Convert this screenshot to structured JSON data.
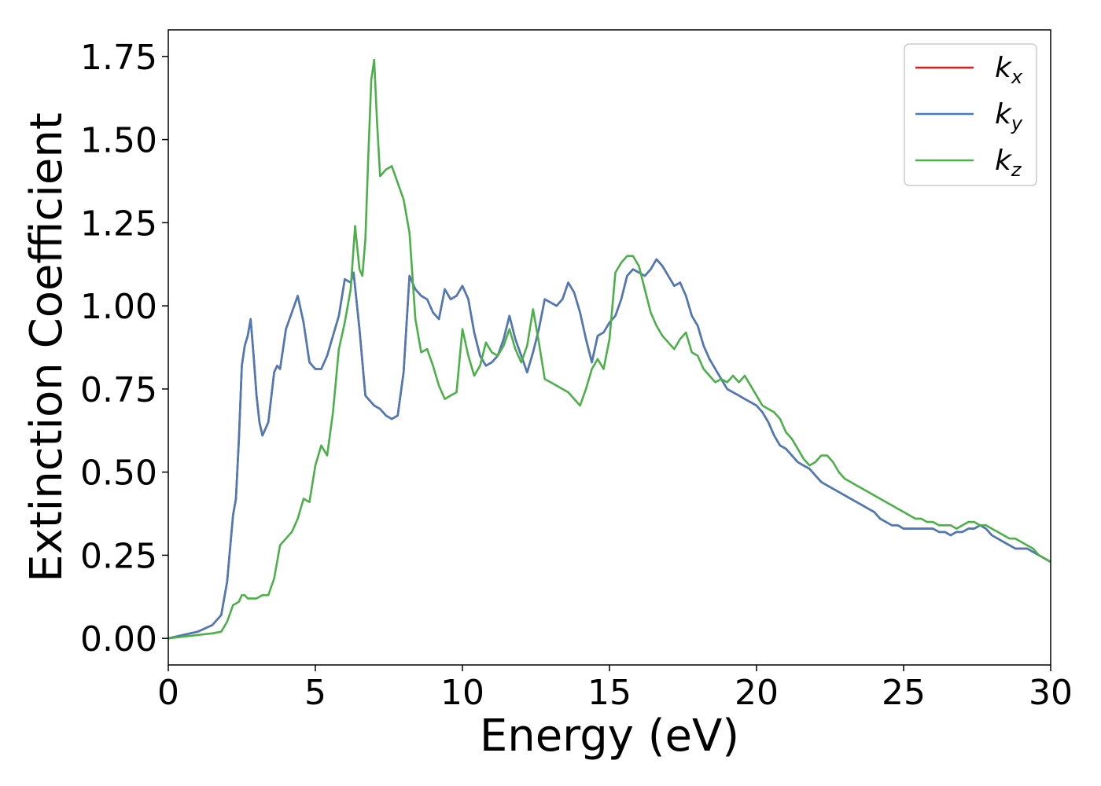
{
  "chart_data": {
    "type": "line",
    "title": "",
    "xlabel": "Energy (eV)",
    "ylabel": "Extinction Coefficient",
    "xlim": [
      0,
      30
    ],
    "ylim": [
      -0.08,
      1.83
    ],
    "xticks": [
      0,
      5,
      10,
      15,
      20,
      25,
      30
    ],
    "xtick_labels": [
      "0",
      "5",
      "10",
      "15",
      "20",
      "25",
      "30"
    ],
    "yticks": [
      0,
      0.25,
      0.5,
      0.75,
      1.0,
      1.25,
      1.5,
      1.75
    ],
    "ytick_labels": [
      "0.00",
      "0.25",
      "0.50",
      "0.75",
      "1.00",
      "1.25",
      "1.50",
      "1.75"
    ],
    "grid": false,
    "legend_position": "top-right",
    "series": [
      {
        "name": "k",
        "subscript": "x",
        "color": "#e41a1c",
        "x": [
          0,
          0.5,
          1.0,
          1.5,
          1.8,
          2.0,
          2.2,
          2.3,
          2.4,
          2.5,
          2.6,
          2.7,
          2.8,
          2.9,
          3.0,
          3.1,
          3.2,
          3.4,
          3.6,
          3.7,
          3.8,
          3.9,
          4.0,
          4.2,
          4.4,
          4.6,
          4.8,
          5.0,
          5.2,
          5.4,
          5.6,
          5.8,
          6.0,
          6.2,
          6.3,
          6.5,
          6.7,
          7.0,
          7.2,
          7.4,
          7.6,
          7.8,
          8.0,
          8.2,
          8.4,
          8.6,
          8.8,
          9.0,
          9.2,
          9.4,
          9.6,
          9.8,
          10.0,
          10.2,
          10.4,
          10.6,
          10.8,
          11.0,
          11.2,
          11.4,
          11.6,
          11.8,
          12.0,
          12.2,
          12.4,
          12.6,
          12.8,
          13.0,
          13.2,
          13.4,
          13.6,
          13.8,
          14.0,
          14.2,
          14.4,
          14.6,
          14.8,
          15.0,
          15.2,
          15.4,
          15.6,
          15.8,
          16.0,
          16.2,
          16.4,
          16.6,
          16.8,
          17.0,
          17.2,
          17.4,
          17.6,
          17.8,
          18.0,
          18.2,
          18.4,
          18.6,
          18.8,
          19.0,
          19.2,
          19.4,
          19.6,
          19.8,
          20.0,
          20.2,
          20.4,
          20.6,
          20.8,
          21.0,
          21.2,
          21.4,
          21.6,
          21.8,
          22.0,
          22.2,
          22.4,
          22.6,
          22.8,
          23.0,
          23.2,
          23.4,
          23.6,
          23.8,
          24.0,
          24.2,
          24.4,
          24.6,
          24.8,
          25.0,
          25.2,
          25.4,
          25.6,
          25.8,
          26.0,
          26.2,
          26.4,
          26.6,
          26.8,
          27.0,
          27.2,
          27.4,
          27.6,
          27.8,
          28.0,
          28.2,
          28.4,
          28.6,
          28.8,
          29.0,
          29.2,
          29.4,
          29.6,
          29.8,
          30.0
        ],
        "y": [
          0,
          0.01,
          0.02,
          0.04,
          0.07,
          0.17,
          0.37,
          0.42,
          0.6,
          0.82,
          0.88,
          0.91,
          0.96,
          0.85,
          0.73,
          0.65,
          0.61,
          0.65,
          0.8,
          0.82,
          0.81,
          0.87,
          0.93,
          0.98,
          1.03,
          0.95,
          0.83,
          0.81,
          0.81,
          0.85,
          0.91,
          0.97,
          1.08,
          1.07,
          1.1,
          0.93,
          0.73,
          0.7,
          0.69,
          0.67,
          0.66,
          0.67,
          0.8,
          1.09,
          1.05,
          1.03,
          1.02,
          0.98,
          0.96,
          1.05,
          1.02,
          1.03,
          1.06,
          1.02,
          0.92,
          0.85,
          0.82,
          0.83,
          0.85,
          0.9,
          0.97,
          0.9,
          0.85,
          0.8,
          0.86,
          0.93,
          1.02,
          1.01,
          1.0,
          1.02,
          1.07,
          1.04,
          0.98,
          0.9,
          0.83,
          0.91,
          0.92,
          0.95,
          0.97,
          1.02,
          1.09,
          1.11,
          1.1,
          1.09,
          1.11,
          1.14,
          1.12,
          1.09,
          1.06,
          1.07,
          1.03,
          0.97,
          0.94,
          0.88,
          0.84,
          0.81,
          0.78,
          0.75,
          0.74,
          0.73,
          0.72,
          0.71,
          0.7,
          0.68,
          0.65,
          0.61,
          0.58,
          0.57,
          0.55,
          0.53,
          0.52,
          0.51,
          0.49,
          0.47,
          0.46,
          0.45,
          0.44,
          0.43,
          0.42,
          0.41,
          0.4,
          0.39,
          0.38,
          0.36,
          0.35,
          0.34,
          0.34,
          0.33,
          0.33,
          0.33,
          0.33,
          0.33,
          0.33,
          0.32,
          0.32,
          0.31,
          0.32,
          0.32,
          0.33,
          0.33,
          0.34,
          0.33,
          0.31,
          0.3,
          0.29,
          0.28,
          0.27,
          0.27,
          0.27,
          0.26,
          0.25,
          0.24,
          0.23
        ]
      },
      {
        "name": "k",
        "subscript": "y",
        "color": "#4a7bb7",
        "x": [
          0,
          0.5,
          1.0,
          1.5,
          1.8,
          2.0,
          2.2,
          2.3,
          2.4,
          2.5,
          2.6,
          2.7,
          2.8,
          2.9,
          3.0,
          3.1,
          3.2,
          3.4,
          3.6,
          3.7,
          3.8,
          3.9,
          4.0,
          4.2,
          4.4,
          4.6,
          4.8,
          5.0,
          5.2,
          5.4,
          5.6,
          5.8,
          6.0,
          6.2,
          6.3,
          6.5,
          6.7,
          7.0,
          7.2,
          7.4,
          7.6,
          7.8,
          8.0,
          8.2,
          8.4,
          8.6,
          8.8,
          9.0,
          9.2,
          9.4,
          9.6,
          9.8,
          10.0,
          10.2,
          10.4,
          10.6,
          10.8,
          11.0,
          11.2,
          11.4,
          11.6,
          11.8,
          12.0,
          12.2,
          12.4,
          12.6,
          12.8,
          13.0,
          13.2,
          13.4,
          13.6,
          13.8,
          14.0,
          14.2,
          14.4,
          14.6,
          14.8,
          15.0,
          15.2,
          15.4,
          15.6,
          15.8,
          16.0,
          16.2,
          16.4,
          16.6,
          16.8,
          17.0,
          17.2,
          17.4,
          17.6,
          17.8,
          18.0,
          18.2,
          18.4,
          18.6,
          18.8,
          19.0,
          19.2,
          19.4,
          19.6,
          19.8,
          20.0,
          20.2,
          20.4,
          20.6,
          20.8,
          21.0,
          21.2,
          21.4,
          21.6,
          21.8,
          22.0,
          22.2,
          22.4,
          22.6,
          22.8,
          23.0,
          23.2,
          23.4,
          23.6,
          23.8,
          24.0,
          24.2,
          24.4,
          24.6,
          24.8,
          25.0,
          25.2,
          25.4,
          25.6,
          25.8,
          26.0,
          26.2,
          26.4,
          26.6,
          26.8,
          27.0,
          27.2,
          27.4,
          27.6,
          27.8,
          28.0,
          28.2,
          28.4,
          28.6,
          28.8,
          29.0,
          29.2,
          29.4,
          29.6,
          29.8,
          30.0
        ],
        "y": [
          0,
          0.01,
          0.02,
          0.04,
          0.07,
          0.17,
          0.37,
          0.42,
          0.6,
          0.82,
          0.88,
          0.91,
          0.96,
          0.85,
          0.73,
          0.65,
          0.61,
          0.65,
          0.8,
          0.82,
          0.81,
          0.87,
          0.93,
          0.98,
          1.03,
          0.95,
          0.83,
          0.81,
          0.81,
          0.85,
          0.91,
          0.97,
          1.08,
          1.07,
          1.1,
          0.93,
          0.73,
          0.7,
          0.69,
          0.67,
          0.66,
          0.67,
          0.8,
          1.09,
          1.05,
          1.03,
          1.02,
          0.98,
          0.96,
          1.05,
          1.02,
          1.03,
          1.06,
          1.02,
          0.92,
          0.85,
          0.82,
          0.83,
          0.85,
          0.9,
          0.97,
          0.9,
          0.85,
          0.8,
          0.86,
          0.93,
          1.02,
          1.01,
          1.0,
          1.02,
          1.07,
          1.04,
          0.98,
          0.9,
          0.83,
          0.91,
          0.92,
          0.95,
          0.97,
          1.02,
          1.09,
          1.11,
          1.1,
          1.09,
          1.11,
          1.14,
          1.12,
          1.09,
          1.06,
          1.07,
          1.03,
          0.97,
          0.94,
          0.88,
          0.84,
          0.81,
          0.78,
          0.75,
          0.74,
          0.73,
          0.72,
          0.71,
          0.7,
          0.68,
          0.65,
          0.61,
          0.58,
          0.57,
          0.55,
          0.53,
          0.52,
          0.51,
          0.49,
          0.47,
          0.46,
          0.45,
          0.44,
          0.43,
          0.42,
          0.41,
          0.4,
          0.39,
          0.38,
          0.36,
          0.35,
          0.34,
          0.34,
          0.33,
          0.33,
          0.33,
          0.33,
          0.33,
          0.33,
          0.32,
          0.32,
          0.31,
          0.32,
          0.32,
          0.33,
          0.33,
          0.34,
          0.33,
          0.31,
          0.3,
          0.29,
          0.28,
          0.27,
          0.27,
          0.27,
          0.26,
          0.25,
          0.24,
          0.23
        ]
      },
      {
        "name": "k",
        "subscript": "z",
        "color": "#4daf4a",
        "x": [
          0,
          0.5,
          1.0,
          1.5,
          1.8,
          2.0,
          2.2,
          2.4,
          2.5,
          2.6,
          2.7,
          2.8,
          3.0,
          3.2,
          3.4,
          3.6,
          3.8,
          4.0,
          4.2,
          4.4,
          4.6,
          4.8,
          5.0,
          5.2,
          5.4,
          5.6,
          5.8,
          6.0,
          6.2,
          6.35,
          6.5,
          6.6,
          6.7,
          6.8,
          6.9,
          7.0,
          7.1,
          7.2,
          7.4,
          7.6,
          7.8,
          8.0,
          8.2,
          8.4,
          8.6,
          8.8,
          9.0,
          9.2,
          9.4,
          9.6,
          9.8,
          10.0,
          10.2,
          10.4,
          10.6,
          10.8,
          11.0,
          11.2,
          11.4,
          11.6,
          11.8,
          12.0,
          12.2,
          12.4,
          12.6,
          12.8,
          13.0,
          13.2,
          13.4,
          13.6,
          13.8,
          14.0,
          14.2,
          14.4,
          14.6,
          14.8,
          15.0,
          15.2,
          15.4,
          15.6,
          15.8,
          16.0,
          16.2,
          16.4,
          16.6,
          16.8,
          17.0,
          17.2,
          17.4,
          17.6,
          17.8,
          18.0,
          18.2,
          18.4,
          18.6,
          18.8,
          19.0,
          19.2,
          19.4,
          19.6,
          19.8,
          20.0,
          20.2,
          20.4,
          20.6,
          20.8,
          21.0,
          21.2,
          21.4,
          21.6,
          21.8,
          22.0,
          22.2,
          22.4,
          22.6,
          22.8,
          23.0,
          23.2,
          23.4,
          23.6,
          23.8,
          24.0,
          24.2,
          24.4,
          24.6,
          24.8,
          25.0,
          25.2,
          25.4,
          25.6,
          25.8,
          26.0,
          26.2,
          26.4,
          26.6,
          26.8,
          27.0,
          27.2,
          27.4,
          27.6,
          27.8,
          28.0,
          28.2,
          28.4,
          28.6,
          28.8,
          29.0,
          29.2,
          29.4,
          29.6,
          29.8,
          30.0
        ],
        "y": [
          0,
          0.005,
          0.01,
          0.015,
          0.02,
          0.05,
          0.1,
          0.11,
          0.13,
          0.13,
          0.12,
          0.12,
          0.12,
          0.13,
          0.13,
          0.18,
          0.28,
          0.3,
          0.32,
          0.36,
          0.42,
          0.41,
          0.52,
          0.58,
          0.55,
          0.68,
          0.87,
          0.95,
          1.05,
          1.24,
          1.11,
          1.09,
          1.2,
          1.45,
          1.68,
          1.74,
          1.55,
          1.39,
          1.41,
          1.42,
          1.37,
          1.32,
          1.22,
          0.96,
          0.86,
          0.87,
          0.82,
          0.76,
          0.72,
          0.73,
          0.74,
          0.93,
          0.85,
          0.79,
          0.82,
          0.89,
          0.86,
          0.85,
          0.88,
          0.93,
          0.87,
          0.83,
          0.88,
          0.99,
          0.89,
          0.78,
          0.77,
          0.76,
          0.75,
          0.74,
          0.72,
          0.7,
          0.75,
          0.81,
          0.84,
          0.81,
          0.9,
          1.1,
          1.13,
          1.15,
          1.15,
          1.12,
          1.05,
          0.98,
          0.94,
          0.91,
          0.89,
          0.87,
          0.9,
          0.92,
          0.86,
          0.85,
          0.81,
          0.79,
          0.77,
          0.78,
          0.77,
          0.79,
          0.77,
          0.79,
          0.76,
          0.73,
          0.7,
          0.69,
          0.68,
          0.66,
          0.62,
          0.6,
          0.57,
          0.54,
          0.52,
          0.53,
          0.55,
          0.55,
          0.53,
          0.5,
          0.48,
          0.47,
          0.46,
          0.45,
          0.44,
          0.43,
          0.42,
          0.41,
          0.4,
          0.39,
          0.38,
          0.37,
          0.36,
          0.36,
          0.35,
          0.35,
          0.34,
          0.34,
          0.34,
          0.33,
          0.34,
          0.35,
          0.35,
          0.34,
          0.34,
          0.33,
          0.32,
          0.31,
          0.3,
          0.3,
          0.29,
          0.28,
          0.27,
          0.25,
          0.24,
          0.23
        ]
      }
    ]
  }
}
